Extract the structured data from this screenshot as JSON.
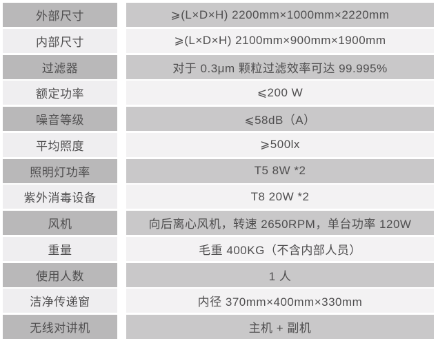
{
  "table": {
    "description": "product-specification-table",
    "colors": {
      "label_dark": "#b9b8b9",
      "label_light": "#efeef0",
      "value_dark": "#c9c8c9",
      "value_light": "#f3f2f3",
      "text": "#4f4e4f",
      "background": "#ffffff"
    },
    "rows": [
      {
        "label": "外部尺寸",
        "value": "⩾(L×D×H)  2200mm×1000mm×2220mm"
      },
      {
        "label": "内部尺寸",
        "value": "⩾(L×D×H)  2100mm×900mm×1900mm"
      },
      {
        "label": "过滤器",
        "value": "对于 0.3μm 颗粒过滤效率可达 99.995%"
      },
      {
        "label": "额定功率",
        "value": "⩽200 W"
      },
      {
        "label": "噪音等级",
        "value": "⩽58dB（A）"
      },
      {
        "label": "平均照度",
        "value": "⩾500lx"
      },
      {
        "label": "照明灯功率",
        "value": "T5 8W *2"
      },
      {
        "label": "紫外消毒设备",
        "value": "T8 20W *2"
      },
      {
        "label": "风机",
        "value": "向后离心风机，转速 2650RPM，单台功率 120W"
      },
      {
        "label": "重量",
        "value": "毛重 400KG（不含内部人员）"
      },
      {
        "label": "使用人数",
        "value": "1 人"
      },
      {
        "label": "洁净传递窗",
        "value": "内径 370mm×400mm×330mm"
      },
      {
        "label": "无线对讲机",
        "value": "主机 + 副机"
      }
    ]
  }
}
